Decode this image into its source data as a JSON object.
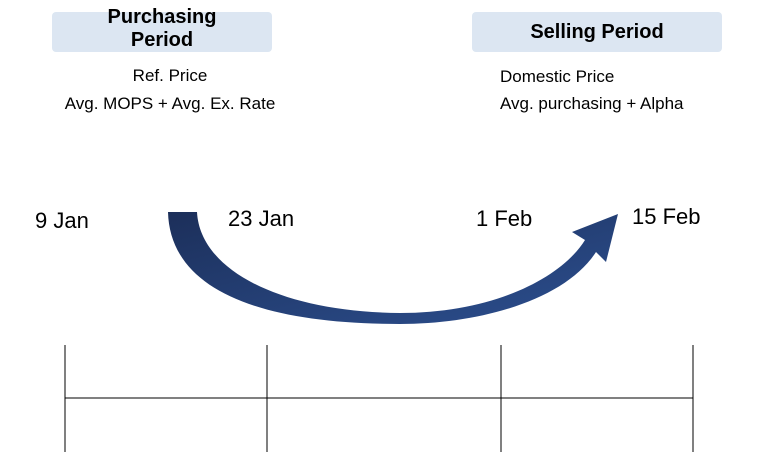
{
  "periods": [
    {
      "title": "Purchasing Period",
      "lines": [
        "Ref. Price",
        "Avg. MOPS + Avg. Ex. Rate"
      ]
    },
    {
      "title": "Selling Period",
      "lines": [
        "Domestic Price",
        "Avg. purchasing + Alpha"
      ]
    }
  ],
  "dates": [
    "9 Jan",
    "23 Jan",
    "1 Feb",
    "15 Feb"
  ]
}
